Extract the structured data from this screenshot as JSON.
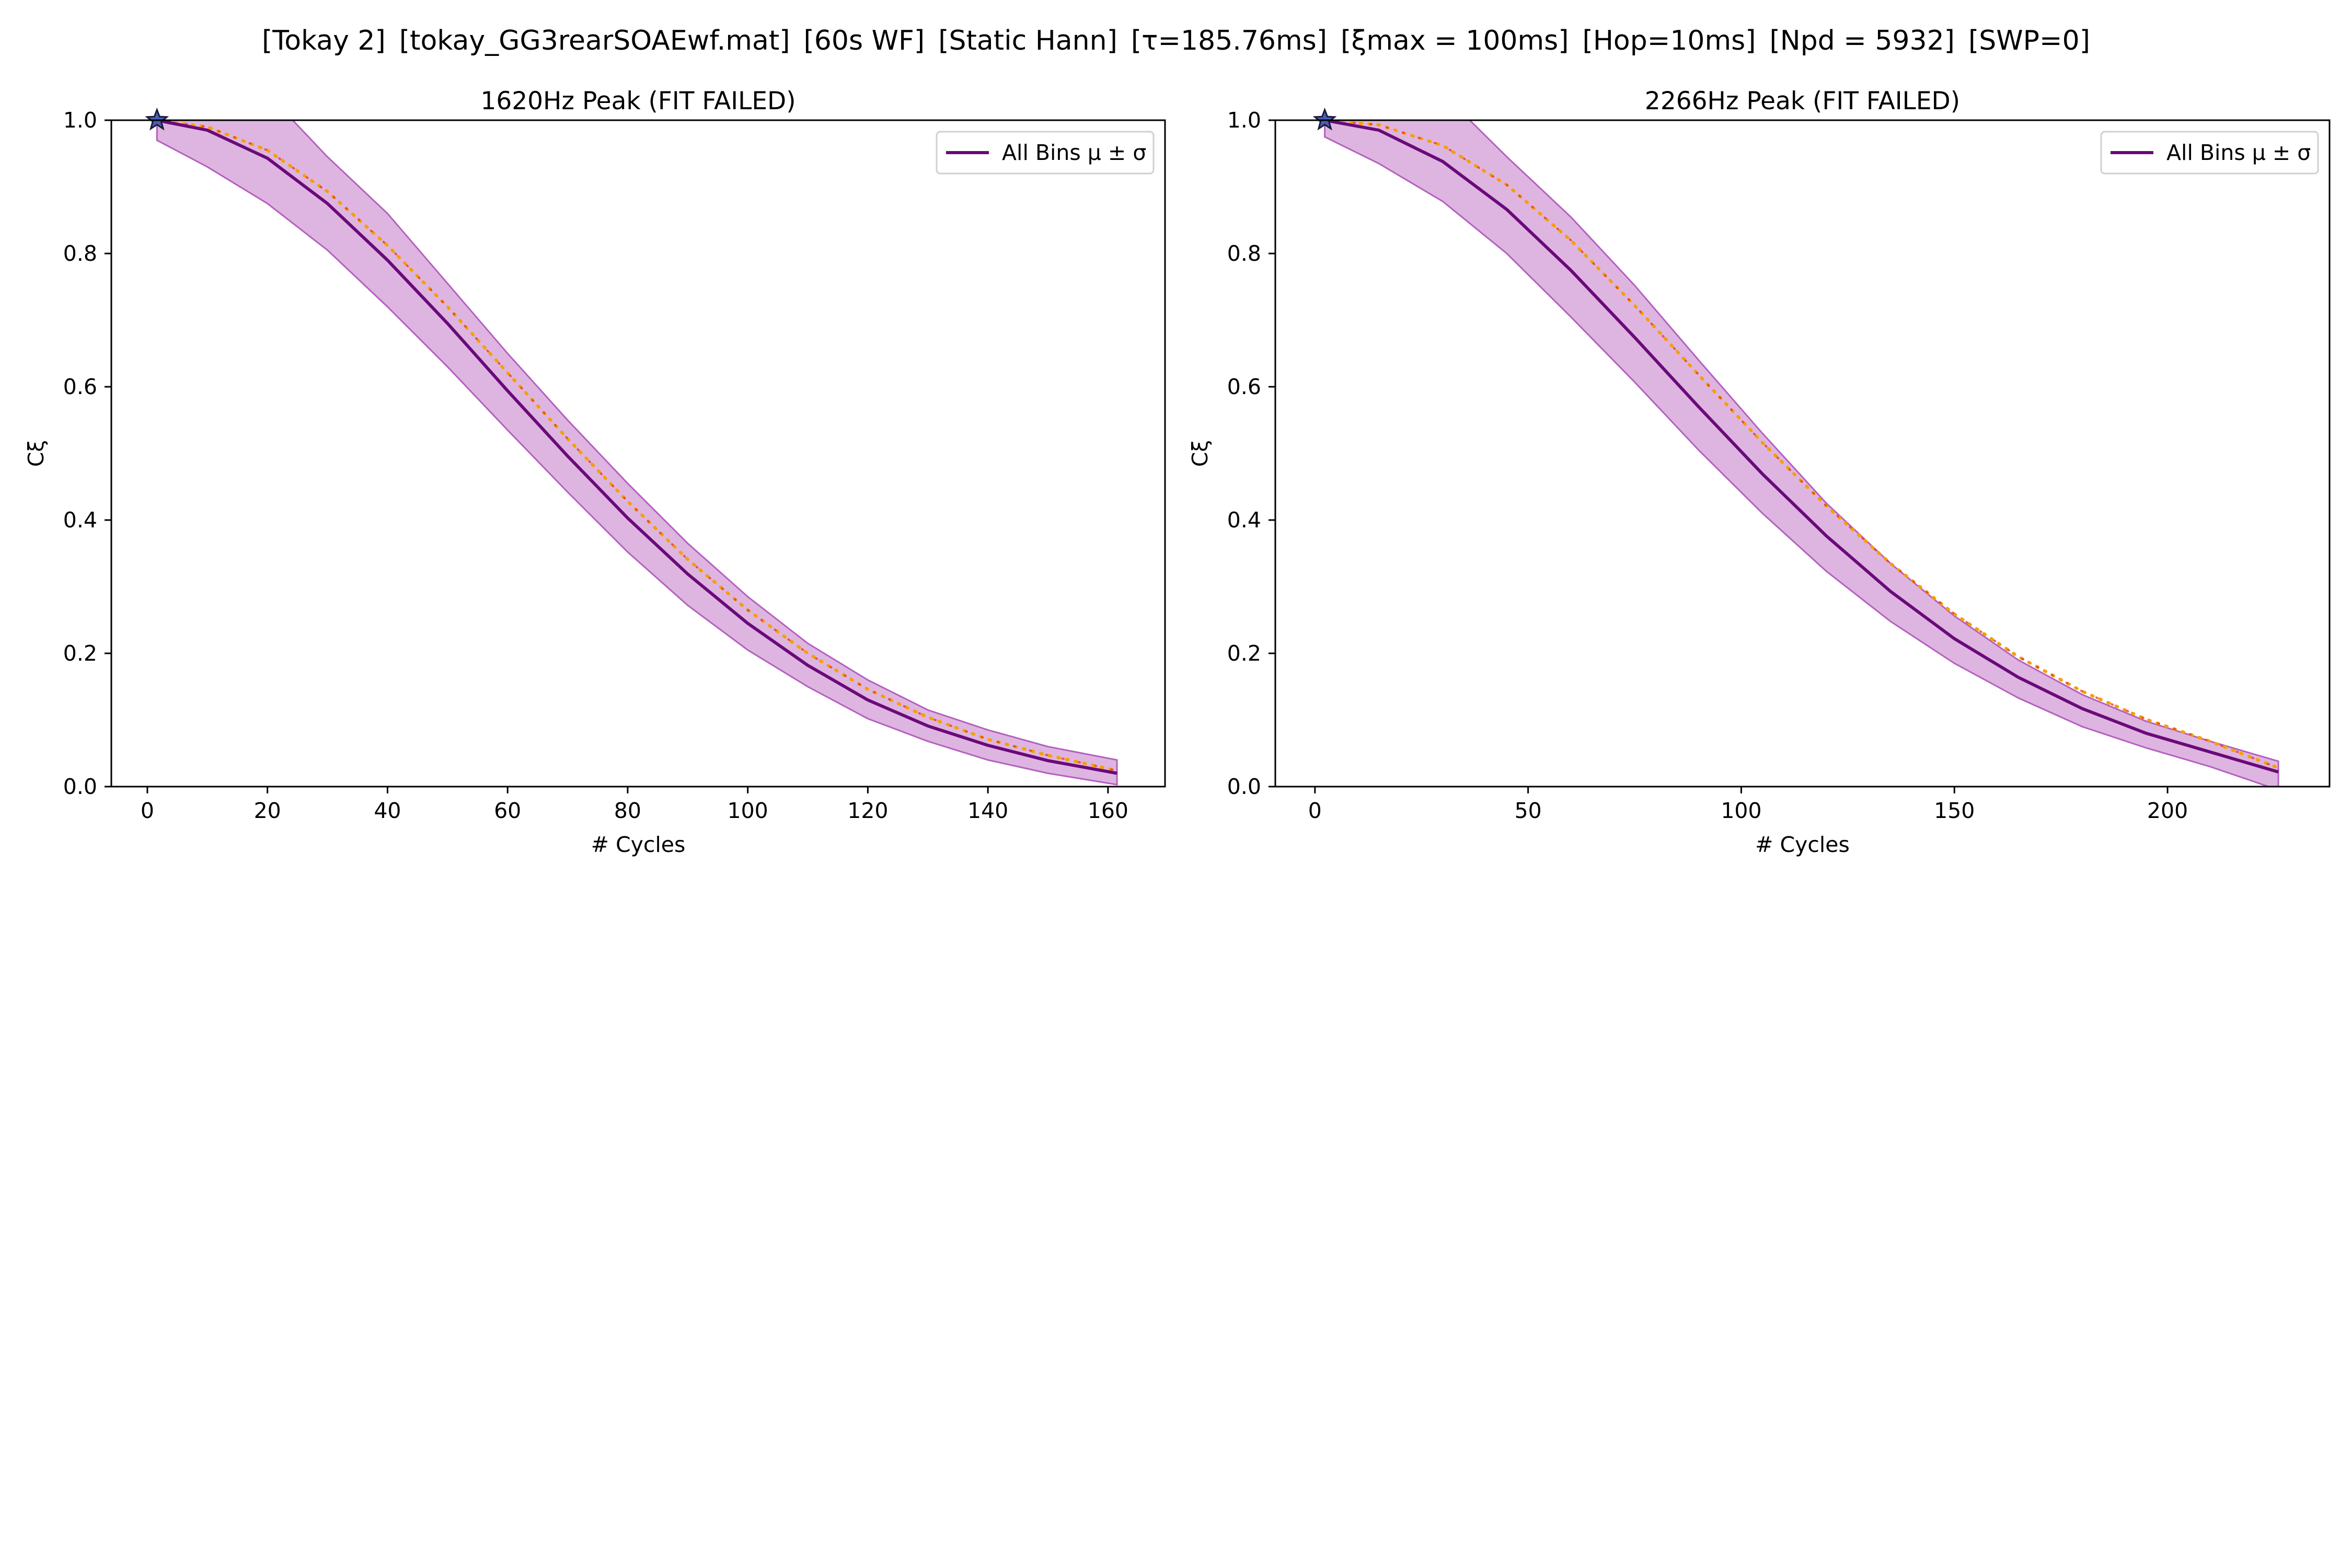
{
  "suptitle_parts": [
    "[Tokay 2]",
    "[tokay_GG3rearSOAEwf.mat]",
    "[60s WF]",
    "[Static Hann]",
    "[τ=185.76ms]",
    "[ξmax = 100ms]",
    "[Hop=10ms]",
    "[Npd = 5932]",
    "[SWP=0]"
  ],
  "colors": {
    "mean_line": "#6a0a7a",
    "band_fill": "#b55cbb",
    "band_edge": "#b560c0",
    "fit_orange": "#f5a000",
    "fit_red": "#e83c2a",
    "axes": "#000000"
  },
  "chart_data": [
    {
      "type": "line",
      "title": "1620Hz Peak (FIT FAILED)",
      "xlabel": "# Cycles",
      "ylabel": "Cξ",
      "xlim": [
        -6,
        169.5
      ],
      "ylim": [
        0,
        1.0
      ],
      "xticks": [
        0,
        20,
        40,
        60,
        80,
        100,
        120,
        140,
        160
      ],
      "yticks": [
        "0.0",
        "0.2",
        "0.4",
        "0.6",
        "0.8",
        "1.0"
      ],
      "ytick_values": [
        0,
        0.2,
        0.4,
        0.6,
        0.8,
        1.0
      ],
      "legend": {
        "label": "All Bins μ ± σ",
        "position": "upper right"
      },
      "peak_marker": {
        "x": 1.6,
        "y": 1.0,
        "symbol": "star"
      },
      "x": [
        1.6,
        10,
        20,
        30,
        40,
        50,
        60,
        70,
        80,
        90,
        100,
        110,
        120,
        130,
        140,
        150,
        161.5
      ],
      "series": [
        {
          "name": "All Bins μ ± σ",
          "role": "mean",
          "values": [
            1.0,
            0.985,
            0.943,
            0.875,
            0.79,
            0.695,
            0.594,
            0.496,
            0.403,
            0.319,
            0.245,
            0.182,
            0.13,
            0.091,
            0.062,
            0.039,
            0.02
          ]
        },
        {
          "role": "upper",
          "values": [
            1.04,
            1.04,
            1.04,
            0.945,
            0.86,
            0.755,
            0.65,
            0.55,
            0.455,
            0.365,
            0.285,
            0.215,
            0.16,
            0.115,
            0.085,
            0.06,
            0.04
          ]
        },
        {
          "role": "lower",
          "values": [
            0.97,
            0.93,
            0.875,
            0.805,
            0.72,
            0.63,
            0.535,
            0.442,
            0.352,
            0.272,
            0.205,
            0.15,
            0.102,
            0.068,
            0.04,
            0.02,
            0.003
          ]
        },
        {
          "role": "fit",
          "values": [
            1.0,
            0.99,
            0.955,
            0.893,
            0.812,
            0.72,
            0.621,
            0.522,
            0.428,
            0.341,
            0.265,
            0.2,
            0.146,
            0.104,
            0.071,
            0.047,
            0.024
          ]
        }
      ]
    },
    {
      "type": "line",
      "title": "2266Hz Peak (FIT FAILED)",
      "xlabel": "# Cycles",
      "ylabel": "Cξ",
      "xlim": [
        -9.3,
        238
      ],
      "ylim": [
        0,
        1.0
      ],
      "xticks": [
        0,
        50,
        100,
        150,
        200
      ],
      "yticks": [
        "0.0",
        "0.2",
        "0.4",
        "0.6",
        "0.8",
        "1.0"
      ],
      "ytick_values": [
        0,
        0.2,
        0.4,
        0.6,
        0.8,
        1.0
      ],
      "legend": {
        "label": "All Bins μ ± σ",
        "position": "upper right"
      },
      "peak_marker": {
        "x": 2.3,
        "y": 1.0,
        "symbol": "star"
      },
      "x": [
        2.3,
        15,
        30,
        45,
        60,
        75,
        90,
        105,
        120,
        135,
        150,
        165,
        180,
        195,
        210,
        226
      ],
      "series": [
        {
          "name": "All Bins μ ± σ",
          "role": "mean",
          "values": [
            1.0,
            0.985,
            0.938,
            0.866,
            0.775,
            0.674,
            0.57,
            0.469,
            0.376,
            0.293,
            0.222,
            0.164,
            0.117,
            0.08,
            0.052,
            0.022
          ]
        },
        {
          "role": "upper",
          "values": [
            1.04,
            1.04,
            1.04,
            0.945,
            0.855,
            0.752,
            0.64,
            0.53,
            0.425,
            0.335,
            0.256,
            0.19,
            0.138,
            0.098,
            0.068,
            0.038
          ]
        },
        {
          "role": "lower",
          "values": [
            0.975,
            0.935,
            0.878,
            0.8,
            0.705,
            0.607,
            0.505,
            0.41,
            0.323,
            0.248,
            0.185,
            0.133,
            0.09,
            0.058,
            0.03,
            -0.005
          ]
        },
        {
          "role": "fit",
          "values": [
            1.0,
            0.993,
            0.962,
            0.903,
            0.82,
            0.722,
            0.618,
            0.516,
            0.421,
            0.335,
            0.259,
            0.195,
            0.143,
            0.101,
            0.068,
            0.028
          ]
        }
      ]
    }
  ]
}
